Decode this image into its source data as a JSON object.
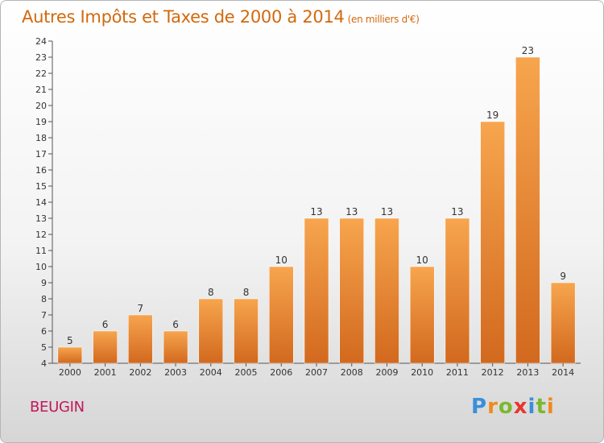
{
  "chart_data": {
    "type": "bar",
    "title": "Autres Impôts et Taxes de 2000 à 2014",
    "unit_note": "(en milliers d'€)",
    "categories": [
      "2000",
      "2001",
      "2002",
      "2003",
      "2004",
      "2005",
      "2006",
      "2007",
      "2008",
      "2009",
      "2010",
      "2011",
      "2012",
      "2013",
      "2014"
    ],
    "values": [
      5,
      6,
      7,
      6,
      8,
      8,
      10,
      13,
      13,
      13,
      10,
      13,
      19,
      23,
      9
    ],
    "ylim": [
      4,
      24
    ],
    "ytick_step": 1,
    "grid": false,
    "bar_color_top": "#f7a54e",
    "bar_color_bottom": "#d2691e"
  },
  "commune": "BEUGIN",
  "logo": {
    "letters": [
      "P",
      "r",
      "o",
      "x",
      "i",
      "t",
      "i"
    ],
    "colors": [
      "#3a8fd9",
      "#f08a1c",
      "#7cb82f",
      "#e8352c",
      "#3a8fd9",
      "#7cb82f",
      "#f08a1c"
    ]
  }
}
